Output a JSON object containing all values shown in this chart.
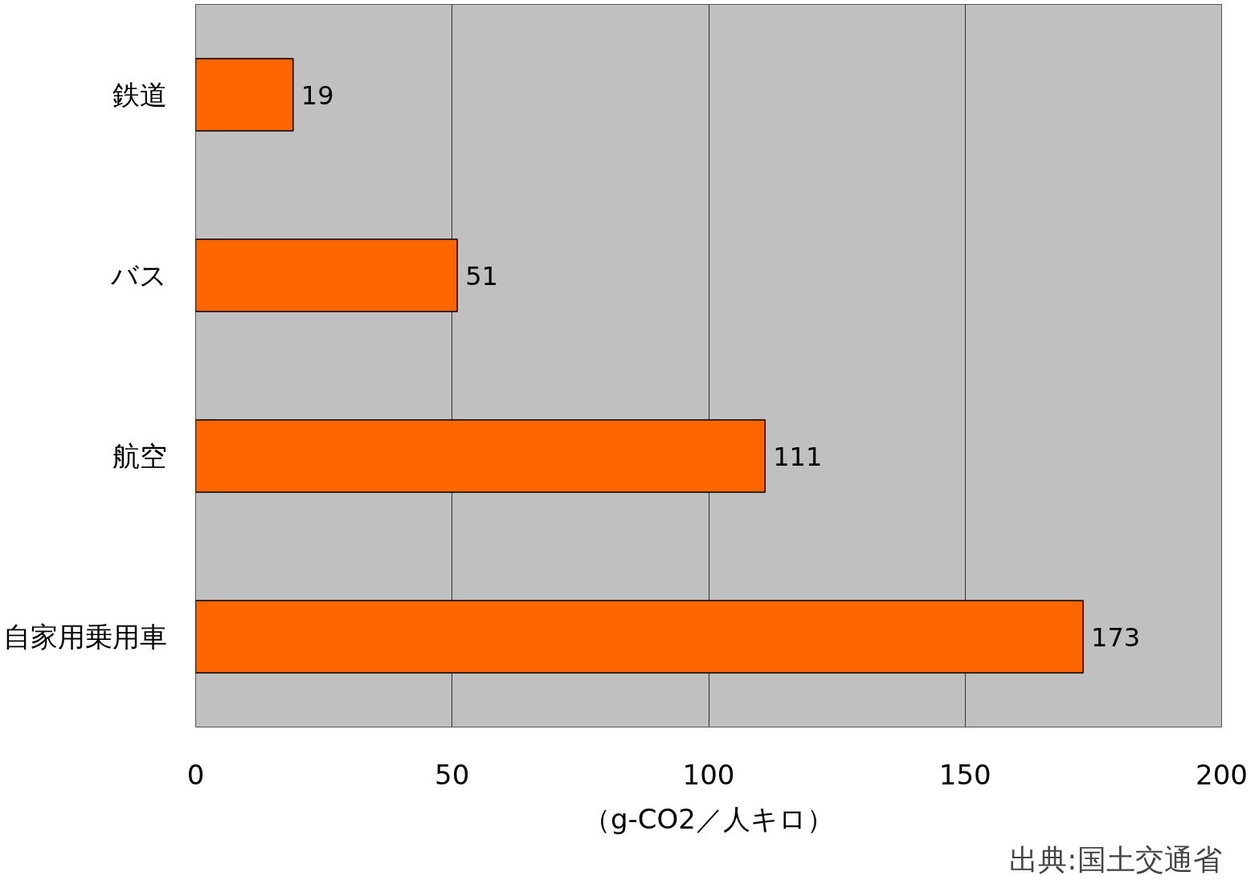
{
  "chart_data": {
    "type": "bar",
    "orientation": "horizontal",
    "categories": [
      "鉄道",
      "バス",
      "航空",
      "自家用乗用車"
    ],
    "values": [
      19,
      51,
      111,
      173
    ],
    "color": "#ff6600",
    "xlim": [
      0,
      200
    ],
    "xticks": [
      0,
      50,
      100,
      150,
      200
    ],
    "xlabel": "（g-CO2／人キロ）",
    "annotations": [
      "出典:国土交通省"
    ],
    "grid": "x",
    "data_labels": true
  }
}
